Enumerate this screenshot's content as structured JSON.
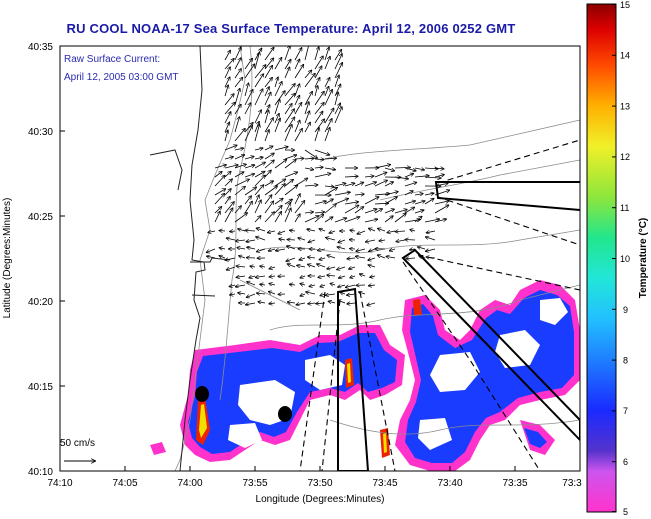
{
  "title": "RU COOL  NOAA-17  Sea Surface Temperature:  April 12, 2006 0252 GMT",
  "inset_label_line1": "Raw Surface Current:",
  "inset_label_line2": "April 12, 2005 03:00 GMT",
  "scale_label": "50 cm/s",
  "x_axis_label": "Longitude (Degrees:Minutes)",
  "y_axis_label": "Latitude (Degrees:Minutes)",
  "colorbar_label": "Temperature (°C)",
  "x_ticks": [
    "74:10",
    "74:05",
    "74:00",
    "73:55",
    "73:50",
    "73:45",
    "73:40",
    "73:35",
    "73:3"
  ],
  "y_ticks": [
    "40:35",
    "40:30",
    "40:25",
    "40:20",
    "40:15",
    "40:10"
  ],
  "colorbar_ticks": [
    "15",
    "14",
    "13",
    "12",
    "11",
    "10",
    "9",
    "8",
    "7",
    "6",
    "5"
  ],
  "colors": {
    "title": "#1a1aa8",
    "inset_text": "#2a2ab0",
    "sst_warm": "#1a3cff",
    "sst_cool": "#ff33cc"
  },
  "chart_data": {
    "type": "heatmap",
    "title": "RU COOL  NOAA-17  Sea Surface Temperature:  April 12, 2006 0252 GMT",
    "xlabel": "Longitude (Degrees:Minutes)",
    "ylabel": "Latitude (Degrees:Minutes)",
    "colorbar": {
      "label": "Temperature (°C)",
      "range": [
        5,
        15
      ]
    },
    "xlim": [
      "74:10",
      "73:3"
    ],
    "ylim": [
      "40:10",
      "40:35"
    ]
  }
}
